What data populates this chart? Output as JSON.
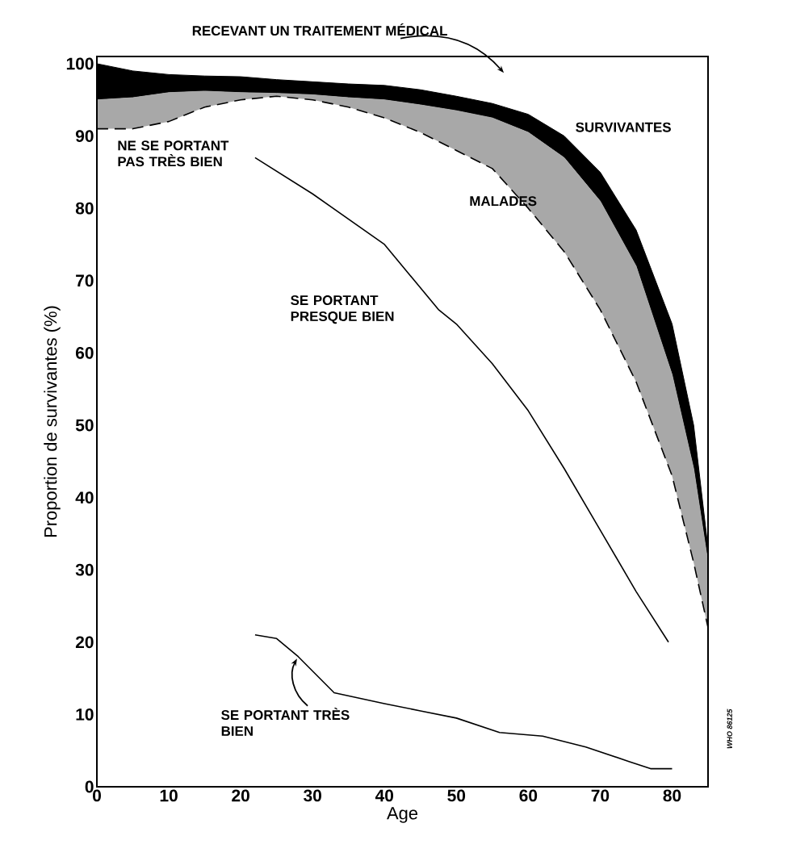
{
  "chart_data": {
    "type": "line",
    "xlabel": "Age",
    "ylabel": "Proportion de survivantes (%)",
    "xlim": [
      0,
      85
    ],
    "ylim": [
      0,
      101
    ],
    "xticks": [
      0,
      10,
      20,
      30,
      40,
      50,
      60,
      70,
      80
    ],
    "yticks": [
      0,
      10,
      20,
      30,
      40,
      50,
      60,
      70,
      80,
      90,
      100
    ],
    "grid": false,
    "marker": "none",
    "series": [
      {
        "name": "SURVIVANTES",
        "type": "area",
        "color": "#000000",
        "x": [
          0,
          5,
          10,
          15,
          20,
          25,
          30,
          35,
          40,
          45,
          50,
          55,
          60,
          65,
          70,
          75,
          80,
          83,
          85
        ],
        "values": [
          100,
          99,
          98.5,
          98.3,
          98.2,
          97.8,
          97.5,
          97.2,
          97,
          96.4,
          95.5,
          94.5,
          93,
          90,
          85,
          77,
          64,
          50,
          33
        ]
      },
      {
        "name": "MALADES",
        "type": "area",
        "color": "#a8a8a8",
        "x": [
          0,
          5,
          10,
          15,
          20,
          25,
          30,
          35,
          40,
          45,
          50,
          55,
          60,
          65,
          70,
          75,
          80,
          83,
          85
        ],
        "values": [
          95,
          95.3,
          96,
          96.2,
          96,
          95.9,
          95.7,
          95.3,
          95,
          94.3,
          93.5,
          92.5,
          90.5,
          87,
          81,
          72,
          57,
          44,
          31
        ]
      },
      {
        "name": "NE SE PORTANT PAS TRÈS BIEN",
        "type": "line",
        "line_style": "dashed",
        "color": "#000000",
        "x": [
          0,
          5,
          10,
          15,
          20,
          25,
          30,
          35,
          40,
          45,
          50,
          55,
          60,
          65,
          70,
          75,
          80,
          83,
          85
        ],
        "values": [
          91,
          91,
          92,
          94,
          95,
          95.5,
          95,
          94,
          92.5,
          90.5,
          88,
          85.5,
          80,
          74,
          66,
          56,
          43,
          31,
          22
        ]
      },
      {
        "name": "SE PORTANT PRESQUE BIEN",
        "type": "line",
        "line_style": "solid",
        "color": "#000000",
        "x": [
          22,
          30,
          40,
          47.5,
          50,
          55,
          60,
          65,
          70,
          75,
          79.5
        ],
        "values": [
          87,
          82,
          75,
          66,
          64,
          58.5,
          52,
          44,
          35.5,
          27,
          20
        ]
      },
      {
        "name": "SE PORTANT TRÈS BIEN",
        "type": "line",
        "line_style": "solid",
        "color": "#000000",
        "x": [
          22,
          25,
          28,
          33,
          40,
          45,
          50,
          56,
          62,
          68,
          74,
          77,
          80
        ],
        "values": [
          21,
          20.5,
          18,
          13,
          11.5,
          10.5,
          9.5,
          7.5,
          7,
          5.5,
          3.5,
          2.5,
          2.5
        ]
      }
    ],
    "annotations": [
      "RECEVANT UN TRAITEMENT MÉDICAL",
      "WHO 86125"
    ]
  }
}
